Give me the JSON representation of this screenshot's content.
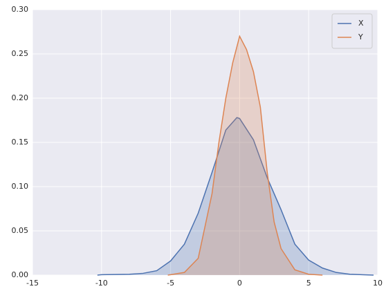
{
  "chart_data": {
    "type": "area",
    "xlim": [
      -15,
      10
    ],
    "xticks": [
      -15,
      -10,
      -5,
      0,
      5,
      10
    ],
    "ylim": [
      0,
      0.3
    ],
    "yticks": [
      {
        "value": 0,
        "label": "0.00"
      },
      {
        "value": 0.05,
        "label": "0.05"
      },
      {
        "value": 0.1,
        "label": "0.10"
      },
      {
        "value": 0.15,
        "label": "0.15"
      },
      {
        "value": 0.2,
        "label": "0.20"
      },
      {
        "value": 0.25,
        "label": "0.25"
      },
      {
        "value": 0.3,
        "label": "0.30"
      }
    ],
    "grid": true,
    "legend": "upper right",
    "series": [
      {
        "name": "X",
        "color": "#4c72b0",
        "x": [
          -10.3,
          -10,
          -8,
          -7,
          -6,
          -5,
          -4,
          -3,
          -2,
          -1,
          -0.2,
          0,
          1,
          2,
          3,
          4,
          5,
          6,
          7,
          8,
          9,
          9.7
        ],
        "values": [
          0,
          0.0005,
          0.001,
          0.002,
          0.005,
          0.016,
          0.035,
          0.07,
          0.116,
          0.164,
          0.178,
          0.177,
          0.153,
          0.11,
          0.074,
          0.035,
          0.017,
          0.008,
          0.003,
          0.001,
          0.0004,
          0
        ]
      },
      {
        "name": "Y",
        "color": "#dd8452",
        "x": [
          -5.2,
          -5,
          -4,
          -3,
          -2,
          -1.5,
          -1,
          -0.5,
          0,
          0.5,
          1,
          1.5,
          2,
          2.5,
          3,
          4,
          5,
          6
        ],
        "values": [
          0,
          0.0005,
          0.003,
          0.019,
          0.092,
          0.15,
          0.2,
          0.24,
          0.27,
          0.255,
          0.23,
          0.19,
          0.116,
          0.06,
          0.03,
          0.006,
          0.001,
          0
        ]
      }
    ]
  }
}
